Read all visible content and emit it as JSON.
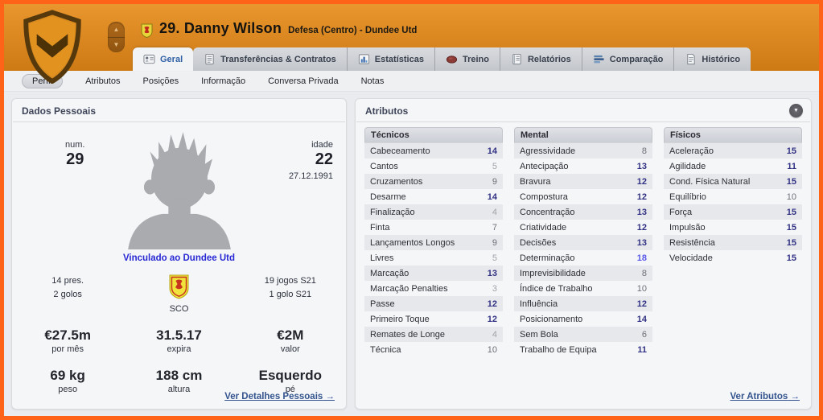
{
  "header": {
    "player_number_name": "29. Danny Wilson",
    "player_position_club": "Defesa (Centro) - Dundee Utd"
  },
  "tabs": [
    {
      "id": "geral",
      "label": "Geral",
      "icon": "id-card-icon",
      "active": true
    },
    {
      "id": "transferencias",
      "label": "Transferências & Contratos",
      "icon": "document-icon",
      "active": false
    },
    {
      "id": "estatisticas",
      "label": "Estatísticas",
      "icon": "bar-chart-icon",
      "active": false
    },
    {
      "id": "treino",
      "label": "Treino",
      "icon": "ball-icon",
      "active": false
    },
    {
      "id": "relatorios",
      "label": "Relatórios",
      "icon": "notebook-icon",
      "active": false
    },
    {
      "id": "comparacao",
      "label": "Comparação",
      "icon": "compare-bars-icon",
      "active": false
    },
    {
      "id": "historico",
      "label": "Histórico",
      "icon": "page-icon",
      "active": false
    }
  ],
  "subtabs": [
    {
      "id": "perfil",
      "label": "Perfil",
      "active": true
    },
    {
      "id": "atributos",
      "label": "Atributos",
      "active": false
    },
    {
      "id": "posicoes",
      "label": "Posições",
      "active": false
    },
    {
      "id": "informacao",
      "label": "Informação",
      "active": false
    },
    {
      "id": "conversa-privada",
      "label": "Conversa Privada",
      "active": false
    },
    {
      "id": "notas",
      "label": "Notas",
      "active": false
    }
  ],
  "personal": {
    "panel_title": "Dados Pessoais",
    "number_label": "num.",
    "number_value": "29",
    "age_label": "idade",
    "age_value": "22",
    "birth_date": "27.12.1991",
    "linked_club": "Vinculado ao Dundee Utd",
    "nationality_code": "SCO",
    "stats": [
      {
        "type": "small",
        "lines": [
          "14 pres.",
          "2 golos"
        ]
      },
      {
        "type": "flag",
        "caption": "SCO"
      },
      {
        "type": "small",
        "lines": [
          "19 jogos S21",
          "1 golo S21"
        ]
      },
      {
        "type": "value",
        "value": "€27.5m",
        "label": "por mês"
      },
      {
        "type": "value",
        "value": "31.5.17",
        "label": "expira"
      },
      {
        "type": "value",
        "value": "€2M",
        "label": "valor"
      },
      {
        "type": "value",
        "value": "69 kg",
        "label": "peso"
      },
      {
        "type": "value",
        "value": "188 cm",
        "label": "altura"
      },
      {
        "type": "value",
        "value": "Esquerdo",
        "label": "pé"
      }
    ],
    "details_link": "Ver Detalhes Pessoais",
    "link_arrow": "→"
  },
  "attributes": {
    "panel_title": "Atributos",
    "columns": [
      {
        "title": "Técnicos",
        "rows": [
          {
            "label": "Cabeceamento",
            "value": 14
          },
          {
            "label": "Cantos",
            "value": 5
          },
          {
            "label": "Cruzamentos",
            "value": 9
          },
          {
            "label": "Desarme",
            "value": 14
          },
          {
            "label": "Finalização",
            "value": 4
          },
          {
            "label": "Finta",
            "value": 7
          },
          {
            "label": "Lançamentos Longos",
            "value": 9
          },
          {
            "label": "Livres",
            "value": 5
          },
          {
            "label": "Marcação",
            "value": 13
          },
          {
            "label": "Marcação Penalties",
            "value": 3
          },
          {
            "label": "Passe",
            "value": 12
          },
          {
            "label": "Primeiro Toque",
            "value": 12
          },
          {
            "label": "Remates de Longe",
            "value": 4
          },
          {
            "label": "Técnica",
            "value": 10
          }
        ]
      },
      {
        "title": "Mental",
        "rows": [
          {
            "label": "Agressividade",
            "value": 8
          },
          {
            "label": "Antecipação",
            "value": 13
          },
          {
            "label": "Bravura",
            "value": 12
          },
          {
            "label": "Compostura",
            "value": 12
          },
          {
            "label": "Concentração",
            "value": 13
          },
          {
            "label": "Criatividade",
            "value": 12
          },
          {
            "label": "Decisões",
            "value": 13
          },
          {
            "label": "Determinação",
            "value": 18
          },
          {
            "label": "Imprevisibilidade",
            "value": 8
          },
          {
            "label": "Índice de Trabalho",
            "value": 10
          },
          {
            "label": "Influência",
            "value": 12
          },
          {
            "label": "Posicionamento",
            "value": 14
          },
          {
            "label": "Sem Bola",
            "value": 6
          },
          {
            "label": "Trabalho de Equipa",
            "value": 11
          }
        ]
      },
      {
        "title": "Físicos",
        "rows": [
          {
            "label": "Aceleração",
            "value": 15
          },
          {
            "label": "Agilidade",
            "value": 11
          },
          {
            "label": "Cond. Física Natural",
            "value": 15
          },
          {
            "label": "Equilíbrio",
            "value": 10
          },
          {
            "label": "Força",
            "value": 15
          },
          {
            "label": "Impulsão",
            "value": 15
          },
          {
            "label": "Resistência",
            "value": 15
          },
          {
            "label": "Velocidade",
            "value": 15
          }
        ]
      }
    ],
    "view_link": "Ver Atributos",
    "link_arrow": "→"
  },
  "colors": {
    "window_border_orange": "#ff6317",
    "header_orange_top": "#e9962e",
    "header_orange_bottom": "#cd7a15",
    "link_blue": "#2a2ad4",
    "nav_link_blue": "#33548e",
    "attr_value_good": "#323284",
    "attr_value_excellent": "#5a5ae8",
    "attr_value_mid": "#6e6e78",
    "attr_value_low": "#a2a2aa"
  }
}
